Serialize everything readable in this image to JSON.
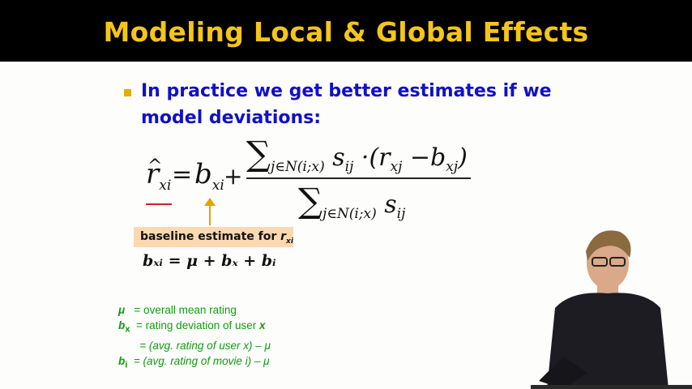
{
  "slide": {
    "title": "Modeling Local & Global Effects",
    "bullet": "In practice we get better estimates if we model deviations:",
    "baseline_label": "baseline estimate for",
    "baseline_var": "r",
    "baseline_sub": "xi",
    "baseline_formula": "bₓᵢ = μ + bₓ + bᵢ",
    "legend": [
      {
        "sym": "μ",
        "text": "=  overall mean rating"
      },
      {
        "sym": "b",
        "sub": "x",
        "text": "=  rating deviation of user ",
        "var": "x"
      },
      {
        "sym": "",
        "text": "= (avg. rating of user x) – μ"
      },
      {
        "sym": "b",
        "sub": "i",
        "text": "= (avg. rating of movie i) – μ"
      }
    ]
  },
  "colors": {
    "title": "#f5c518",
    "bullet_text": "#1010c8",
    "legend": "#129a12",
    "baseline_box": "#fbd8b0",
    "arrow": "#e6a200"
  }
}
